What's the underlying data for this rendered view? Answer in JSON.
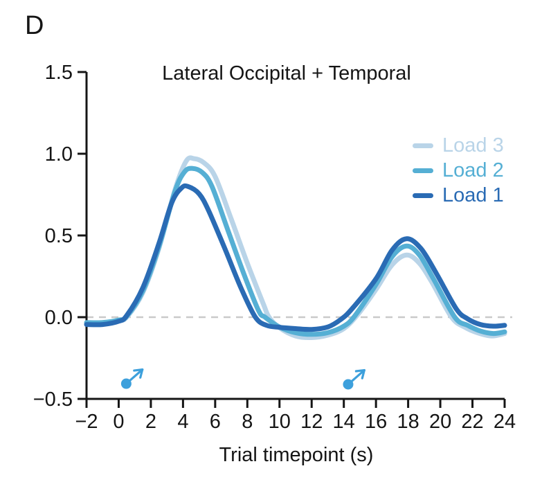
{
  "panel_label": "D",
  "colors": {
    "axis": "#151515",
    "text": "#151515",
    "background": "#ffffff"
  },
  "chart_data": {
    "type": "line",
    "title": "Lateral Occipital + Temporal",
    "xlabel": "Trial timepoint (s)",
    "ylabel": "",
    "xlim": [
      -2,
      24
    ],
    "ylim": [
      -0.5,
      1.5
    ],
    "grid": false,
    "x_ticks": [
      -2,
      0,
      2,
      4,
      6,
      8,
      10,
      12,
      14,
      16,
      18,
      20,
      22,
      24
    ],
    "x_tick_labels": [
      "−2",
      "0",
      "2",
      "4",
      "6",
      "8",
      "10",
      "12",
      "14",
      "16",
      "18",
      "20",
      "22",
      "24"
    ],
    "y_ticks": [
      -0.5,
      0.0,
      0.5,
      1.0,
      1.5
    ],
    "y_tick_labels": [
      "−0.5",
      "0.0",
      "0.5",
      "1.0",
      "1.5"
    ],
    "zero_line": {
      "value": 0.0,
      "color": "#c9c9c9",
      "style": "dashed"
    },
    "legend": {
      "position": "top-right",
      "entries": [
        "Load 3",
        "Load 2",
        "Load 1"
      ]
    },
    "series": [
      {
        "name": "Load 3",
        "color": "#b9d4e8",
        "points": [
          [
            -2,
            -0.035
          ],
          [
            -1,
            -0.035
          ],
          [
            0,
            -0.02
          ],
          [
            0.5,
            0.0
          ],
          [
            1.5,
            0.15
          ],
          [
            2.5,
            0.42
          ],
          [
            3.5,
            0.78
          ],
          [
            4.2,
            0.955
          ],
          [
            4.7,
            0.97
          ],
          [
            5.3,
            0.945
          ],
          [
            6.0,
            0.86
          ],
          [
            7.0,
            0.6
          ],
          [
            8.0,
            0.33
          ],
          [
            9.0,
            0.08
          ],
          [
            9.35,
            0.0
          ],
          [
            10,
            -0.065
          ],
          [
            11,
            -0.115
          ],
          [
            12,
            -0.125
          ],
          [
            13,
            -0.11
          ],
          [
            14,
            -0.07
          ],
          [
            14.9,
            0.02
          ],
          [
            16,
            0.17
          ],
          [
            17,
            0.32
          ],
          [
            17.9,
            0.38
          ],
          [
            18.7,
            0.33
          ],
          [
            19.5,
            0.21
          ],
          [
            20.7,
            0.0
          ],
          [
            21.5,
            -0.06
          ],
          [
            22.3,
            -0.095
          ],
          [
            23.2,
            -0.115
          ],
          [
            24,
            -0.1
          ]
        ]
      },
      {
        "name": "Load 2",
        "color": "#55afd4",
        "points": [
          [
            -2,
            -0.033
          ],
          [
            -1,
            -0.033
          ],
          [
            0,
            -0.018
          ],
          [
            0.5,
            0.005
          ],
          [
            1.5,
            0.16
          ],
          [
            2.5,
            0.43
          ],
          [
            3.5,
            0.77
          ],
          [
            4.1,
            0.89
          ],
          [
            4.6,
            0.91
          ],
          [
            5.2,
            0.885
          ],
          [
            5.8,
            0.8
          ],
          [
            6.8,
            0.53
          ],
          [
            7.8,
            0.26
          ],
          [
            8.7,
            0.04
          ],
          [
            9.1,
            0.0
          ],
          [
            10,
            -0.06
          ],
          [
            11,
            -0.095
          ],
          [
            12,
            -0.105
          ],
          [
            13,
            -0.095
          ],
          [
            14,
            -0.055
          ],
          [
            14.7,
            0.01
          ],
          [
            16,
            0.2
          ],
          [
            17,
            0.37
          ],
          [
            17.9,
            0.435
          ],
          [
            18.7,
            0.38
          ],
          [
            19.6,
            0.23
          ],
          [
            20.9,
            0.0
          ],
          [
            21.7,
            -0.05
          ],
          [
            22.5,
            -0.085
          ],
          [
            23.3,
            -0.1
          ],
          [
            24,
            -0.09
          ]
        ]
      },
      {
        "name": "Load 1",
        "color": "#2a6bb4",
        "points": [
          [
            -2,
            -0.045
          ],
          [
            -1,
            -0.045
          ],
          [
            0,
            -0.025
          ],
          [
            0.5,
            0.01
          ],
          [
            1.5,
            0.18
          ],
          [
            2.5,
            0.45
          ],
          [
            3.3,
            0.7
          ],
          [
            3.9,
            0.79
          ],
          [
            4.3,
            0.8
          ],
          [
            5.0,
            0.755
          ],
          [
            5.6,
            0.65
          ],
          [
            6.6,
            0.42
          ],
          [
            7.6,
            0.18
          ],
          [
            8.5,
            0.0
          ],
          [
            9.2,
            -0.05
          ],
          [
            10,
            -0.062
          ],
          [
            11,
            -0.07
          ],
          [
            12,
            -0.075
          ],
          [
            13,
            -0.06
          ],
          [
            13.8,
            -0.015
          ],
          [
            14.5,
            0.05
          ],
          [
            16,
            0.235
          ],
          [
            17,
            0.41
          ],
          [
            17.9,
            0.48
          ],
          [
            18.8,
            0.42
          ],
          [
            19.8,
            0.26
          ],
          [
            21,
            0.05
          ],
          [
            21.7,
            -0.01
          ],
          [
            22.5,
            -0.045
          ],
          [
            23.3,
            -0.055
          ],
          [
            24,
            -0.05
          ]
        ]
      }
    ],
    "event_markers": {
      "shape": "dot-with-up-right-arrow",
      "color": "#3da0dc",
      "points": [
        {
          "t": 0.47,
          "v": -0.407
        },
        {
          "t": 14.27,
          "v": -0.411
        }
      ]
    }
  }
}
